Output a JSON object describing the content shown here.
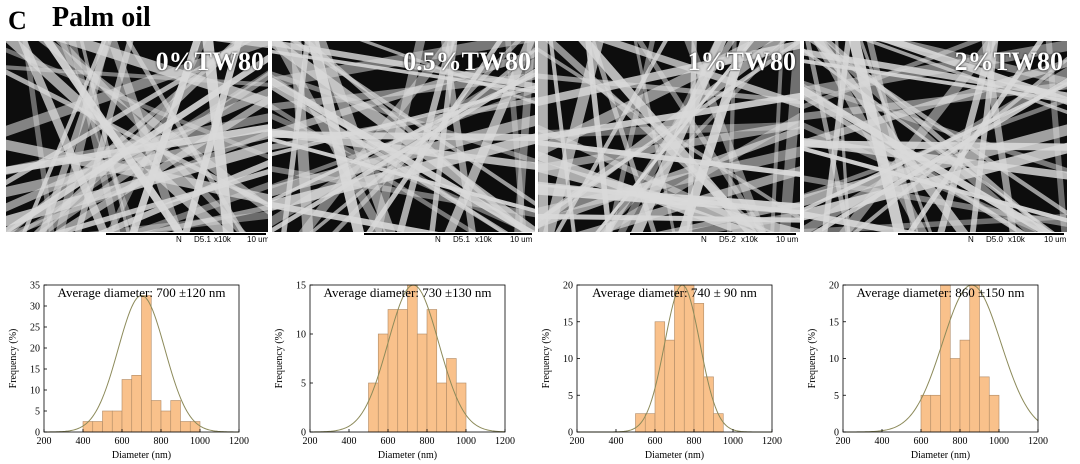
{
  "panel_letter": "C",
  "panel_title": "Palm oil",
  "sem_panels": [
    {
      "label": "0%TW80",
      "info": {
        "n": "N",
        "wd": "D5.1",
        "mag": "x10k",
        "scale": "10 um"
      }
    },
    {
      "label": "0.5%TW80",
      "info": {
        "n": "N",
        "wd": "D5.1",
        "mag": "x10k",
        "scale": "10 um"
      }
    },
    {
      "label": "1%TW80",
      "info": {
        "n": "N",
        "wd": "D5.2",
        "mag": "x10k",
        "scale": "10 um"
      }
    },
    {
      "label": "2%TW80",
      "info": {
        "n": "N",
        "wd": "D5.0",
        "mag": "x10k",
        "scale": "10 um"
      }
    }
  ],
  "colors": {
    "bar_fill": "#f9c18b",
    "bar_edge": "#b08a66",
    "curve": "#8c8a5a",
    "sem_bg": "#0d0d0d",
    "fiber": "#d9d9d9"
  },
  "chart_data": [
    {
      "type": "bar",
      "title": "Average diameter: 700 ±120 nm",
      "xlabel": "Diameter (nm)",
      "ylabel": "Frequency (%)",
      "xlim": [
        200,
        1200
      ],
      "ylim": [
        0,
        35
      ],
      "xticks": [
        200,
        400,
        600,
        800,
        1000,
        1200
      ],
      "yticks": [
        0,
        5,
        10,
        15,
        20,
        25,
        30,
        35
      ],
      "bin_width": 50,
      "bins": [
        [
          400,
          2.5
        ],
        [
          450,
          2.5
        ],
        [
          500,
          5
        ],
        [
          550,
          5
        ],
        [
          600,
          12.5
        ],
        [
          650,
          13.5
        ],
        [
          700,
          32.5
        ],
        [
          750,
          7.5
        ],
        [
          800,
          5
        ],
        [
          850,
          7.5
        ],
        [
          900,
          2.5
        ],
        [
          950,
          2.5
        ]
      ],
      "fit": {
        "type": "gaussian",
        "mean": 700,
        "sd": 120,
        "peak": 32.5
      }
    },
    {
      "type": "bar",
      "title": "Average diameter: 730 ±130 nm",
      "xlabel": "Diameter (nm)",
      "ylabel": "Frequency (%)",
      "xlim": [
        200,
        1200
      ],
      "ylim": [
        0,
        15
      ],
      "xticks": [
        200,
        400,
        600,
        800,
        1000,
        1200
      ],
      "yticks": [
        0,
        5,
        10,
        15
      ],
      "bin_width": 50,
      "bins": [
        [
          500,
          5
        ],
        [
          550,
          10
        ],
        [
          600,
          12.5
        ],
        [
          650,
          12.5
        ],
        [
          700,
          15
        ],
        [
          750,
          10
        ],
        [
          800,
          12.5
        ],
        [
          850,
          5
        ],
        [
          900,
          7.5
        ],
        [
          950,
          5
        ]
      ],
      "fit": {
        "type": "gaussian",
        "mean": 730,
        "sd": 130,
        "peak": 15
      }
    },
    {
      "type": "bar",
      "title": "Average diameter: 740 ± 90 nm",
      "xlabel": "Diameter (nm)",
      "ylabel": "Frequency (%)",
      "xlim": [
        200,
        1200
      ],
      "ylim": [
        0,
        20
      ],
      "xticks": [
        200,
        400,
        600,
        800,
        1000,
        1200
      ],
      "yticks": [
        0,
        5,
        10,
        15,
        20
      ],
      "bin_width": 50,
      "bins": [
        [
          500,
          2.5
        ],
        [
          550,
          2.5
        ],
        [
          600,
          15
        ],
        [
          650,
          12.5
        ],
        [
          700,
          20
        ],
        [
          750,
          20
        ],
        [
          800,
          17.5
        ],
        [
          850,
          7.5
        ],
        [
          900,
          2.5
        ]
      ],
      "fit": {
        "type": "gaussian",
        "mean": 740,
        "sd": 90,
        "peak": 20
      }
    },
    {
      "type": "bar",
      "title": "Average diameter: 860 ±150 nm",
      "xlabel": "Diameter (nm)",
      "ylabel": "Frequency (%)",
      "xlim": [
        200,
        1200
      ],
      "ylim": [
        0,
        20
      ],
      "xticks": [
        200,
        400,
        600,
        800,
        1000,
        1200
      ],
      "yticks": [
        0,
        5,
        10,
        15,
        20
      ],
      "bin_width": 50,
      "bins": [
        [
          600,
          5
        ],
        [
          650,
          5
        ],
        [
          700,
          20
        ],
        [
          750,
          10
        ],
        [
          800,
          12.5
        ],
        [
          850,
          20
        ],
        [
          900,
          7.5
        ],
        [
          950,
          5
        ]
      ],
      "fit": {
        "type": "gaussian",
        "mean": 860,
        "sd": 150,
        "peak": 20
      }
    }
  ]
}
